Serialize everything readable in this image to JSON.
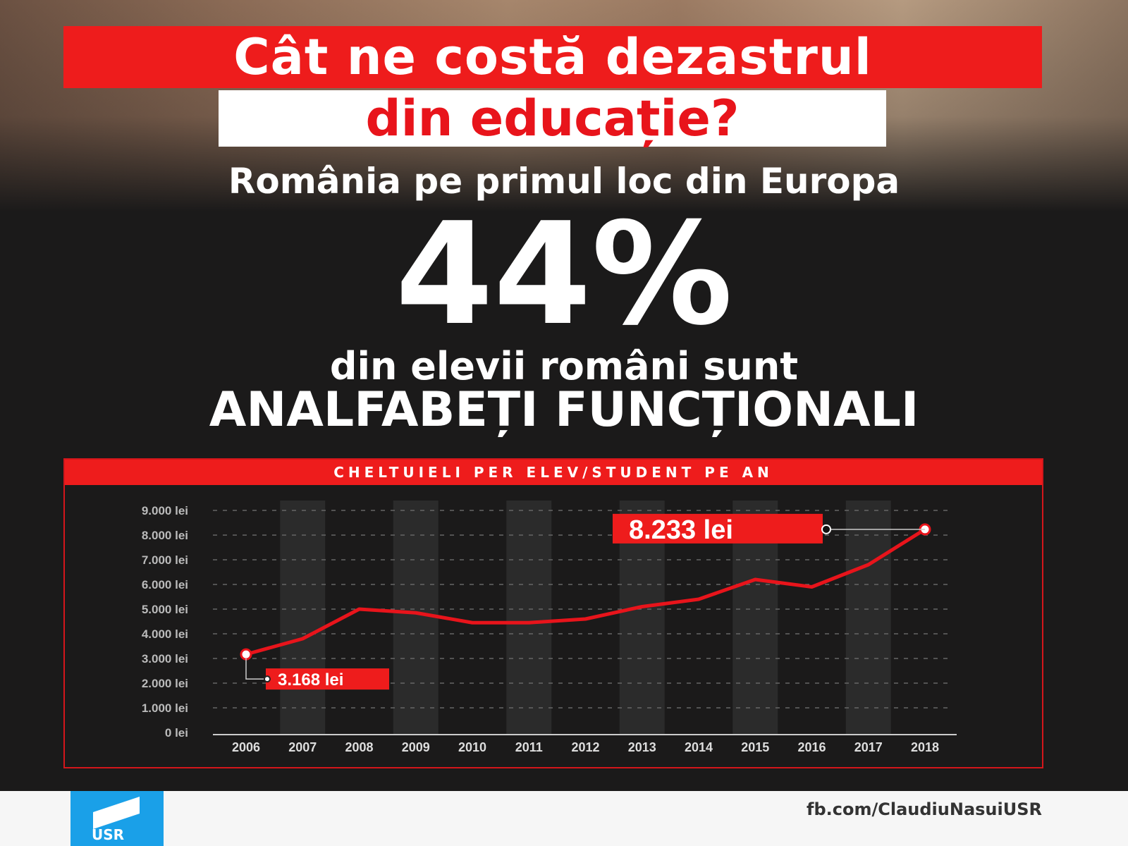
{
  "header": {
    "title_line1": "Cât ne costă dezastrul",
    "title_line2": "din educație?",
    "subtitle": "România pe primul loc din Europa",
    "big_stat": "44%",
    "stat_line1": "din elevii români sunt",
    "stat_line2": "ANALFABEȚI FUNCȚIONALI"
  },
  "chart_data": {
    "type": "line",
    "title": "CHELTUIELI PER ELEV/STUDENT PE AN",
    "x": [
      "2006",
      "2007",
      "2008",
      "2009",
      "2010",
      "2011",
      "2012",
      "2013",
      "2014",
      "2015",
      "2016",
      "2017",
      "2018"
    ],
    "values": [
      3168,
      3800,
      5000,
      4850,
      4450,
      4450,
      4600,
      5100,
      5400,
      6200,
      5900,
      6800,
      8233
    ],
    "ylim": [
      0,
      9000
    ],
    "yticks": [
      "0 lei",
      "1.000 lei",
      "2.000 lei",
      "3.000 lei",
      "4.000 lei",
      "5.000 lei",
      "6.000 lei",
      "7.000 lei",
      "8.000 lei",
      "9.000 lei"
    ],
    "grid": true,
    "annotations": [
      "3.168 lei",
      "8.233 lei"
    ],
    "line_color": "#e8141b"
  },
  "footer": {
    "logo_text": "USR",
    "link": "fb.com/ClaudiuNasuiUSR",
    "logo_color": "#1aa0e8"
  }
}
